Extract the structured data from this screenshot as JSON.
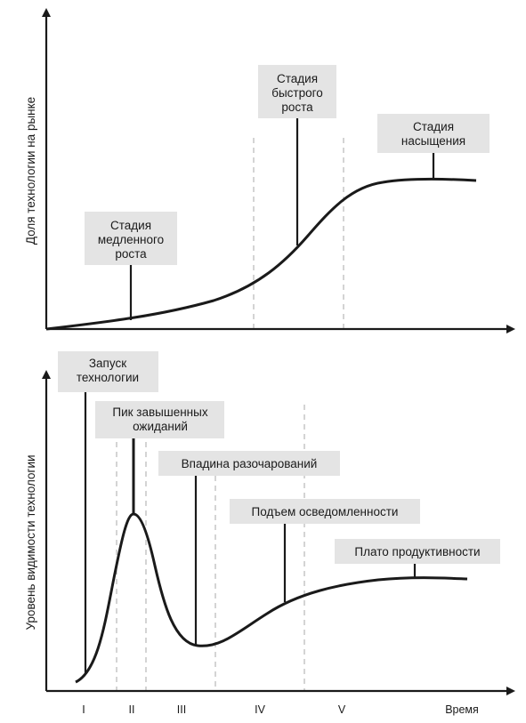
{
  "top_chart": {
    "ylabel": "Доля технологии на рынке",
    "labels": {
      "slow": [
        "Стадия",
        "медленного",
        "роста"
      ],
      "fast": [
        "Стадия",
        "быстрого",
        "роста"
      ],
      "saturation": [
        "Стадия",
        "насыщения"
      ]
    }
  },
  "bottom_chart": {
    "ylabel": "Уровень видимости технологии",
    "xlabel": "Время",
    "labels": {
      "launch": [
        "Запуск",
        "технологии"
      ],
      "peak": [
        "Пик завышенных",
        "ожиданий"
      ],
      "trough": "Впадина разочарований",
      "slope": "Подъем осведомленности",
      "plateau": "Плато продуктивности"
    },
    "stages": [
      "I",
      "II",
      "III",
      "IV",
      "V"
    ]
  },
  "colors": {
    "label_box": "#e4e4e4",
    "curve": "#1a1a1a",
    "guide": "#aaaaaa"
  }
}
